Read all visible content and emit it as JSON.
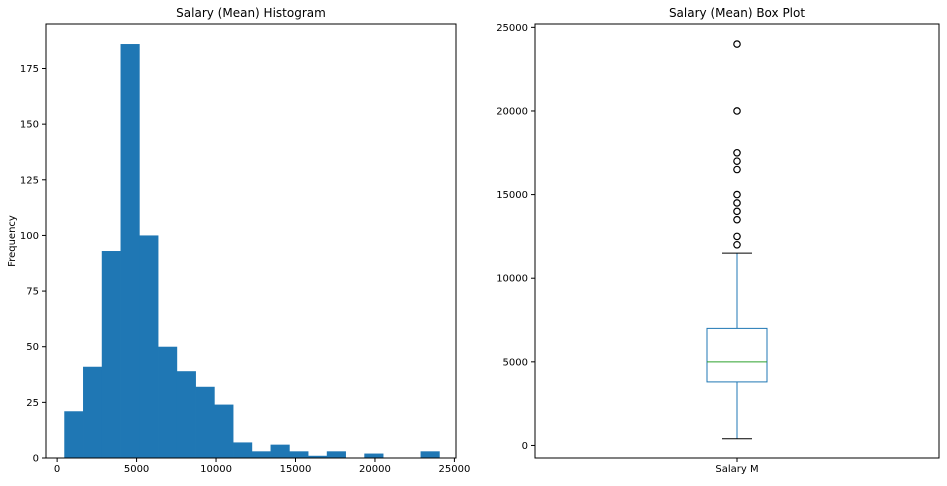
{
  "chart_data": [
    {
      "type": "bar",
      "title": "Salary (Mean) Histogram",
      "xlabel": "",
      "ylabel": "Frequency",
      "xlim": [
        -700,
        25100
      ],
      "ylim": [
        0,
        195
      ],
      "bin_start": 450,
      "bin_width": 1180,
      "values": [
        21,
        41,
        93,
        186,
        100,
        50,
        39,
        32,
        24,
        7,
        3,
        6,
        3,
        1,
        3,
        0,
        2,
        0,
        0,
        3
      ],
      "color": "#1f77b4",
      "x_ticks": [
        "0",
        "5000",
        "10000",
        "15000",
        "20000",
        "25000"
      ],
      "y_ticks": [
        "0",
        "25",
        "50",
        "75",
        "100",
        "125",
        "150",
        "175"
      ],
      "grid": false
    },
    {
      "type": "box",
      "title": "Salary (Mean) Box Plot",
      "category": "Salary M",
      "ylim": [
        -750,
        25200
      ],
      "whisker_low": 400,
      "q1": 3800,
      "median": 5000,
      "q3": 7000,
      "whisker_high": 11500,
      "outliers": [
        12000,
        12500,
        13500,
        14000,
        14500,
        15000,
        16500,
        17000,
        17500,
        20000,
        24000
      ],
      "box_color": "#1f77b4",
      "median_color": "#2ca02c",
      "y_ticks": [
        "0",
        "5000",
        "10000",
        "15000",
        "20000",
        "25000"
      ],
      "grid": false
    }
  ]
}
